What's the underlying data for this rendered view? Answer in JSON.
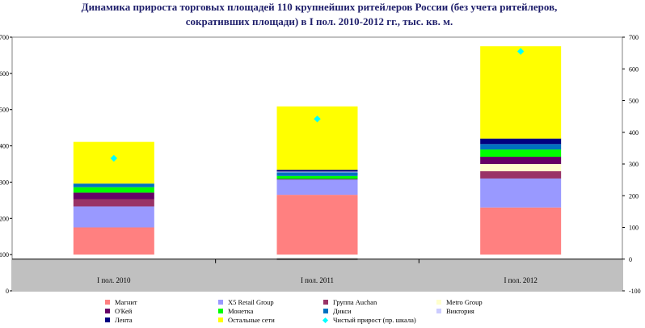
{
  "chart_data": {
    "type": "bar",
    "stacked": true,
    "title": "Динамика прироста торговых площадей 110 крупнейших ритейлеров России (без учета ритейлеров, сокративших площади) в I пол. 2010-2012 гг., тыс. кв. м.",
    "title_line1": "Динамика прироста торговых площадей 110 крупнейших ритейлеров России (без учета ритейлеров,",
    "title_line2": "сокративших площади) в I пол. 2010-2012 гг., тыс. кв. м.",
    "categories": [
      "I пол. 2010",
      "I пол. 2011",
      "I пол. 2012"
    ],
    "left_axis": {
      "ylim": [
        0,
        700
      ],
      "ticks": [
        "0",
        "100",
        "200",
        "300",
        "400",
        "500",
        "600",
        "700"
      ]
    },
    "right_axis": {
      "ylim": [
        -100,
        700
      ],
      "ticks": [
        "-100",
        "0",
        "100",
        "200",
        "300",
        "400",
        "500",
        "600",
        "700"
      ]
    },
    "series": [
      {
        "name": "Магнит",
        "color": "#ff8080",
        "values": [
          75,
          165,
          130
        ]
      },
      {
        "name": "X5 Retail Group",
        "color": "#9999ff",
        "values": [
          58,
          42,
          80
        ]
      },
      {
        "name": "Группа Auchan",
        "color": "#993366",
        "values": [
          20,
          0,
          20
        ]
      },
      {
        "name": "Metro Group",
        "color": "#ffffcc",
        "values": [
          0,
          0,
          20
        ]
      },
      {
        "name": "О'Кей",
        "color": "#660066",
        "values": [
          18,
          2,
          20
        ]
      },
      {
        "name": "Монетка",
        "color": "#00ff00",
        "values": [
          15,
          8,
          20
        ]
      },
      {
        "name": "Дикси",
        "color": "#0070c0",
        "values": [
          10,
          10,
          15
        ]
      },
      {
        "name": "Виктория",
        "color": "#ccccff",
        "values": [
          0,
          2,
          0
        ]
      },
      {
        "name": "Лента",
        "color": "#000080",
        "values": [
          0,
          5,
          15
        ]
      },
      {
        "name": "Остальные сети",
        "color": "#ffff00",
        "values": [
          115,
          175,
          255
        ]
      }
    ],
    "line_series": {
      "name": "Чистый прирост (пр. шкала)",
      "color": "#00ffff",
      "axis": "right",
      "values": [
        318,
        442,
        655
      ]
    },
    "legend_position": "bottom",
    "grid": false
  }
}
